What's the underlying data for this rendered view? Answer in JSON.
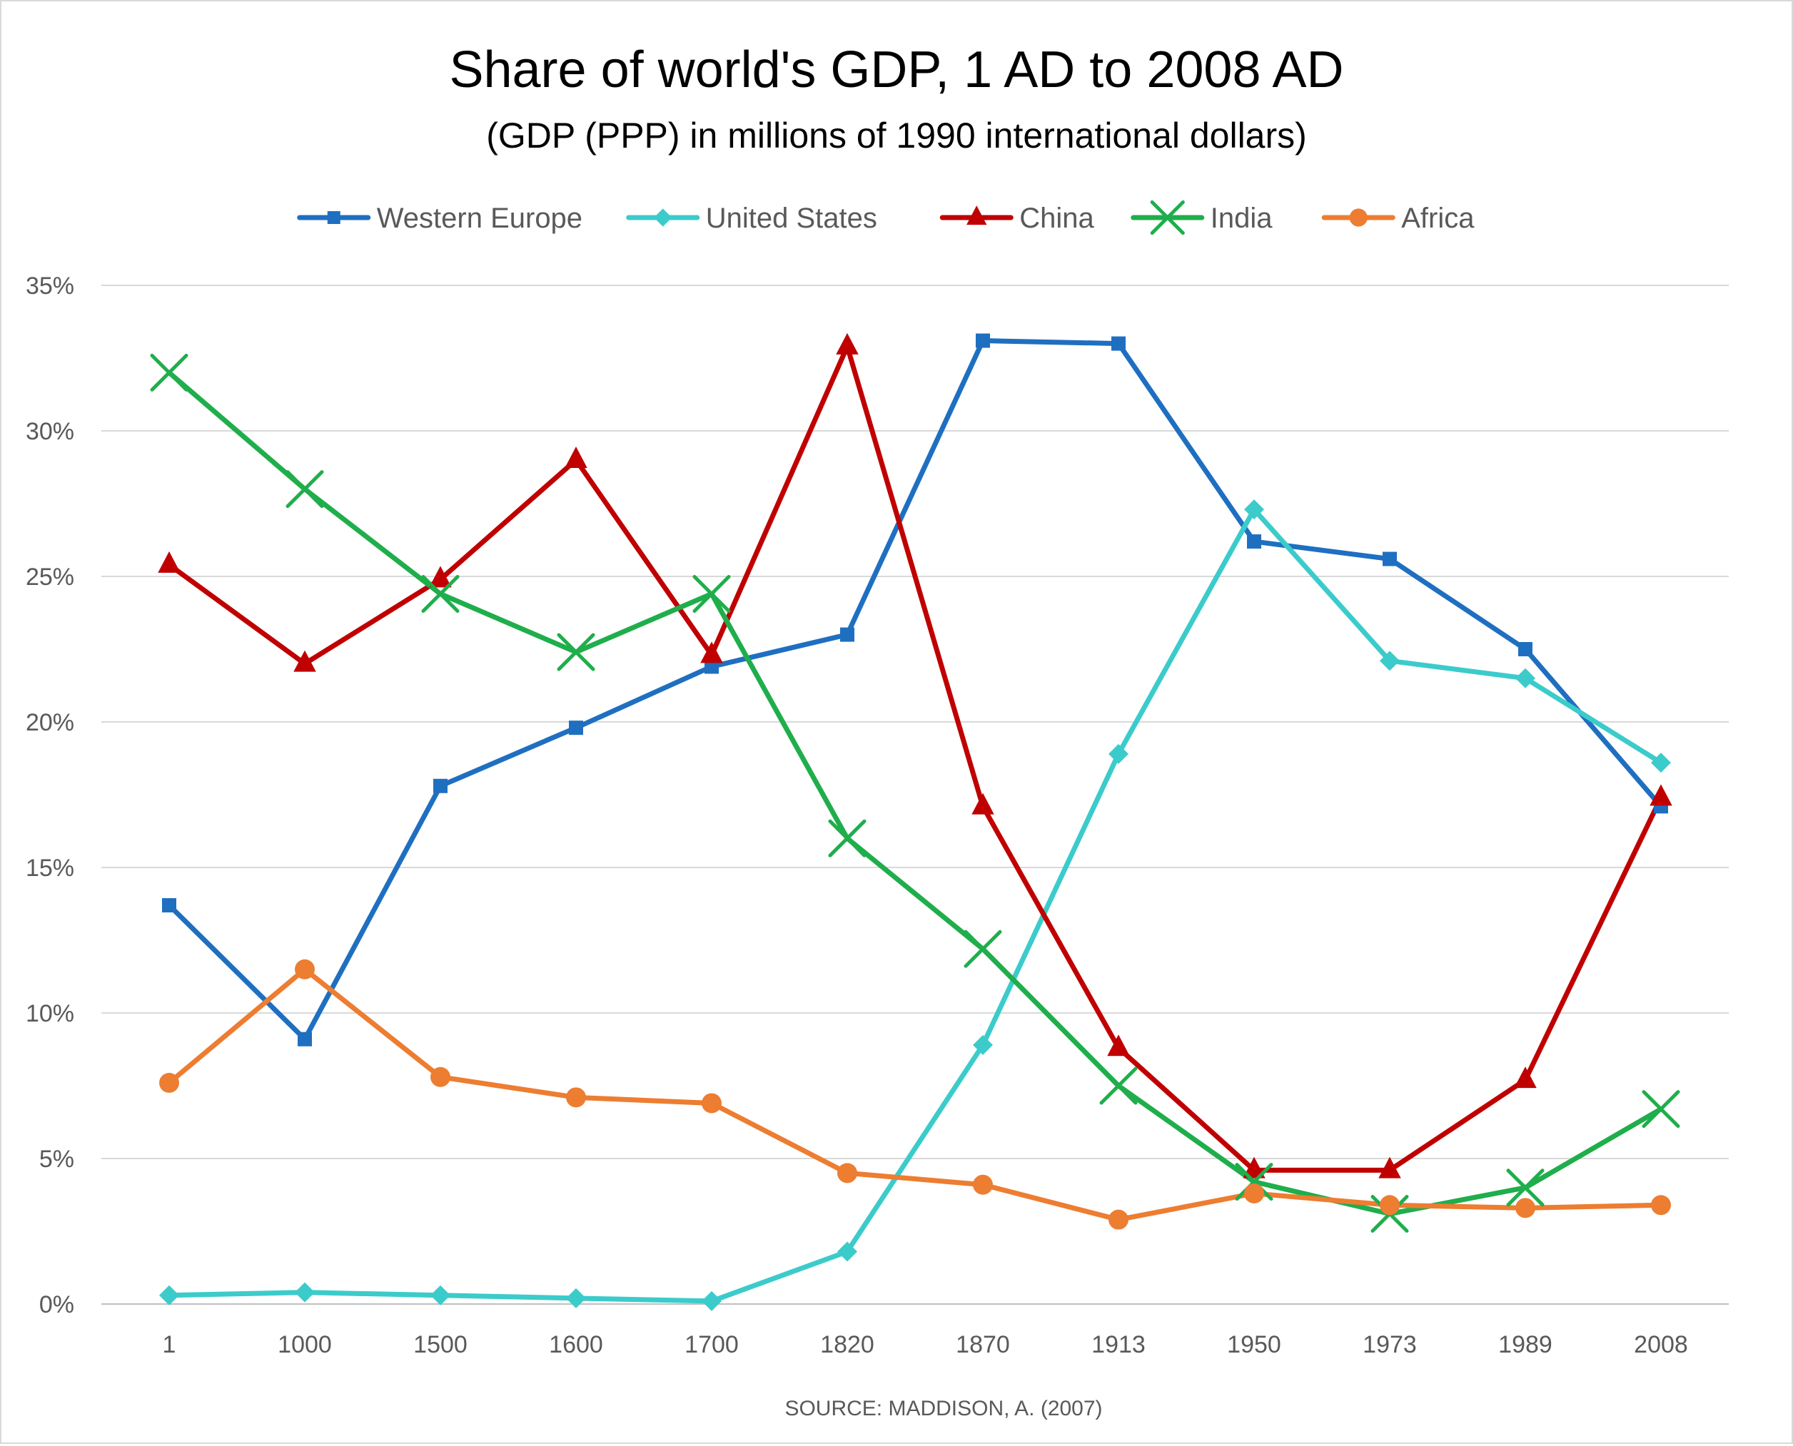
{
  "chart_data": {
    "type": "line",
    "title": "Share of world's GDP, 1 AD to 2008 AD",
    "subtitle": "(GDP (PPP) in millions of 1990 international dollars)",
    "xlabel": "",
    "ylabel": "",
    "source": "SOURCE: MADDISON, A. (2007)",
    "categories": [
      "1",
      "1000",
      "1500",
      "1600",
      "1700",
      "1820",
      "1870",
      "1913",
      "1950",
      "1973",
      "1989",
      "2008"
    ],
    "ylim": [
      0,
      35
    ],
    "yticks": [
      0,
      5,
      10,
      15,
      20,
      25,
      30,
      35
    ],
    "ytick_labels": [
      "0%",
      "5%",
      "10%",
      "15%",
      "20%",
      "25%",
      "30%",
      "35%"
    ],
    "grid": true,
    "legend_position": "top",
    "series": [
      {
        "name": "Western Europe",
        "color": "#1f6fc1",
        "marker": "square",
        "values": [
          13.7,
          9.1,
          17.8,
          19.8,
          21.9,
          23.0,
          33.1,
          33.0,
          26.2,
          25.6,
          22.5,
          17.1
        ]
      },
      {
        "name": "United States",
        "color": "#3ccbcb",
        "marker": "diamond",
        "values": [
          0.3,
          0.4,
          0.3,
          0.2,
          0.1,
          1.8,
          8.9,
          18.9,
          27.3,
          22.1,
          21.5,
          18.6
        ]
      },
      {
        "name": "China",
        "color": "#c00000",
        "marker": "triangle",
        "values": [
          25.4,
          22.0,
          24.9,
          29.0,
          22.3,
          32.9,
          17.1,
          8.8,
          4.6,
          4.6,
          7.7,
          17.4
        ]
      },
      {
        "name": "India",
        "color": "#1fae4b",
        "marker": "x",
        "values": [
          32.0,
          28.0,
          24.4,
          22.4,
          24.4,
          16.0,
          12.2,
          7.5,
          4.2,
          3.1,
          4.0,
          6.7
        ]
      },
      {
        "name": "Africa",
        "color": "#ed7d31",
        "marker": "circle",
        "values": [
          7.6,
          11.5,
          7.8,
          7.1,
          6.9,
          4.5,
          4.1,
          2.9,
          3.8,
          3.4,
          3.3,
          3.4
        ]
      }
    ]
  }
}
